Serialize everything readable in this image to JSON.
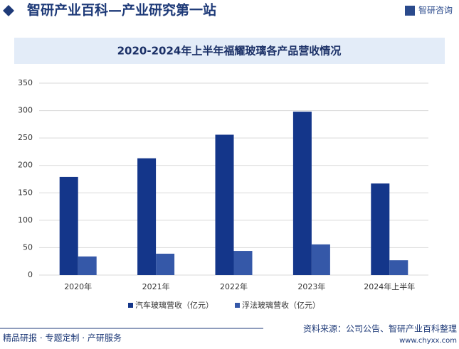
{
  "header": {
    "title": "智研产业百科—产业研究第一站",
    "logo": "智研咨询"
  },
  "chart_data": {
    "type": "bar",
    "title": "2020-2024年上半年福耀玻璃各产品营收情况",
    "categories": [
      "2020年",
      "2021年",
      "2022年",
      "2023年",
      "2024年上半年"
    ],
    "series": [
      {
        "name": "汽车玻璃营收（亿元）",
        "color": "#14368a",
        "values": [
          179,
          213,
          256,
          298,
          167
        ]
      },
      {
        "name": "浮法玻璃营收（亿元）",
        "color": "#3558a8",
        "values": [
          34,
          39,
          44,
          56,
          27
        ]
      }
    ],
    "ylim": [
      0,
      350
    ],
    "yticks": [
      0,
      50,
      100,
      150,
      200,
      250,
      300,
      350
    ],
    "grid": true,
    "legend": "bottom"
  },
  "footer": {
    "left": "精品研报 · 专题定制 · 产研服务",
    "source": "资料来源：公司公告、智研产业百科整理",
    "site": "www.chyxx.com"
  }
}
